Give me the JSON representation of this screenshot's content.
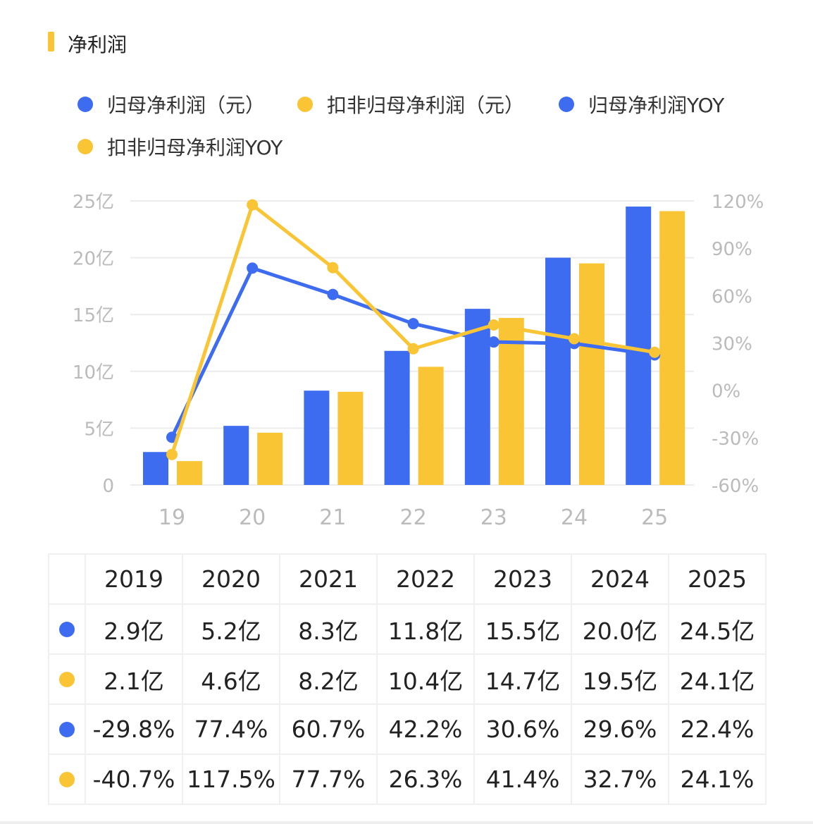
{
  "title": "净利润",
  "colors": {
    "blue": "#3d6cf0",
    "yellow": "#f9c535",
    "accent": "#f9c535"
  },
  "legend": [
    {
      "label": "归母净利润（元）",
      "color": "#3d6cf0"
    },
    {
      "label": "扣非归母净利润（元）",
      "color": "#f9c535"
    },
    {
      "label": "归母净利润YOY",
      "color": "#3d6cf0"
    },
    {
      "label": "扣非归母净利润YOY",
      "color": "#f9c535"
    }
  ],
  "chart_data": {
    "type": "bar+line",
    "categories": [
      "19",
      "20",
      "21",
      "22",
      "23",
      "24",
      "25"
    ],
    "left_axis": {
      "ticks": [
        "0",
        "5亿",
        "10亿",
        "15亿",
        "20亿",
        "25亿"
      ],
      "range": [
        0,
        25
      ],
      "unit": "亿"
    },
    "right_axis": {
      "ticks": [
        "-60%",
        "-30%",
        "0%",
        "30%",
        "60%",
        "90%",
        "120%"
      ],
      "range": [
        -60,
        120
      ]
    },
    "grid": true,
    "legend_position": "top",
    "series": [
      {
        "name": "归母净利润（元）",
        "type": "bar",
        "axis": "left",
        "values": [
          2.9,
          5.2,
          8.3,
          11.8,
          15.5,
          20.0,
          24.5
        ]
      },
      {
        "name": "扣非归母净利润（元）",
        "type": "bar",
        "axis": "left",
        "values": [
          2.1,
          4.6,
          8.2,
          10.4,
          14.7,
          19.5,
          24.1
        ]
      },
      {
        "name": "归母净利润YOY",
        "type": "line",
        "axis": "right",
        "values": [
          -29.8,
          77.4,
          60.7,
          42.2,
          30.6,
          29.6,
          22.4
        ]
      },
      {
        "name": "扣非归母净利润YOY",
        "type": "line",
        "axis": "right",
        "values": [
          -40.7,
          117.5,
          77.7,
          26.3,
          41.4,
          32.7,
          24.1
        ]
      }
    ]
  },
  "table": {
    "headers": [
      "2019",
      "2020",
      "2021",
      "2022",
      "2023",
      "2024",
      "2025"
    ],
    "rows": [
      {
        "color": "#3d6cf0",
        "cells": [
          "2.9亿",
          "5.2亿",
          "8.3亿",
          "11.8亿",
          "15.5亿",
          "20.0亿",
          "24.5亿"
        ]
      },
      {
        "color": "#f9c535",
        "cells": [
          "2.1亿",
          "4.6亿",
          "8.2亿",
          "10.4亿",
          "14.7亿",
          "19.5亿",
          "24.1亿"
        ]
      },
      {
        "color": "#3d6cf0",
        "cells": [
          "-29.8%",
          "77.4%",
          "60.7%",
          "42.2%",
          "30.6%",
          "29.6%",
          "22.4%"
        ]
      },
      {
        "color": "#f9c535",
        "cells": [
          "-40.7%",
          "117.5%",
          "77.7%",
          "26.3%",
          "41.4%",
          "32.7%",
          "24.1%"
        ]
      }
    ]
  }
}
